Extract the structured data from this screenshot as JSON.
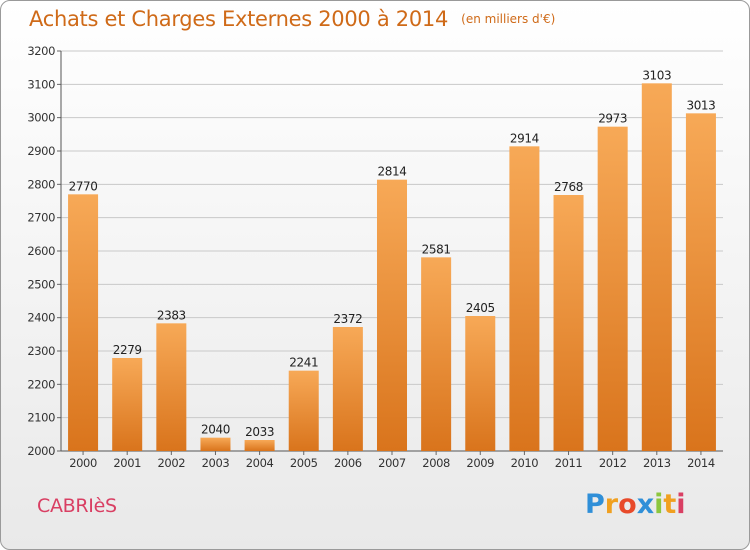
{
  "title": "Achats et Charges Externes 2000 à 2014",
  "unit_note": "(en milliers d'€)",
  "commune": "CABRIèS",
  "logo": {
    "text": "Proxiti",
    "letters": [
      "P",
      "r",
      "o",
      "x",
      "i",
      "t",
      "i"
    ],
    "letter_colors": [
      "#2f8fd8",
      "#f0a020",
      "#e84a2a",
      "#2f8fd8",
      "#8cc63e",
      "#f0a020",
      "#d93f63"
    ]
  },
  "colors": {
    "bar_top": "#f7a957",
    "bar_bottom": "#d9741c",
    "grid": "#c9c9c9",
    "title": "#cf6a18",
    "commune": "#d93f63"
  },
  "chart_data": {
    "type": "bar",
    "title": "Achats et Charges Externes 2000 à 2014",
    "categories": [
      "2000",
      "2001",
      "2002",
      "2003",
      "2004",
      "2005",
      "2006",
      "2007",
      "2008",
      "2009",
      "2010",
      "2011",
      "2012",
      "2013",
      "2014"
    ],
    "values": [
      2770,
      2279,
      2383,
      2040,
      2033,
      2241,
      2372,
      2814,
      2581,
      2405,
      2914,
      2768,
      2973,
      3103,
      3013
    ],
    "ylim": [
      2000,
      3200
    ],
    "yticks": [
      2000,
      2100,
      2200,
      2300,
      2400,
      2500,
      2600,
      2700,
      2800,
      2900,
      3000,
      3100,
      3200
    ],
    "grid": true,
    "xlabel": "",
    "ylabel": ""
  }
}
